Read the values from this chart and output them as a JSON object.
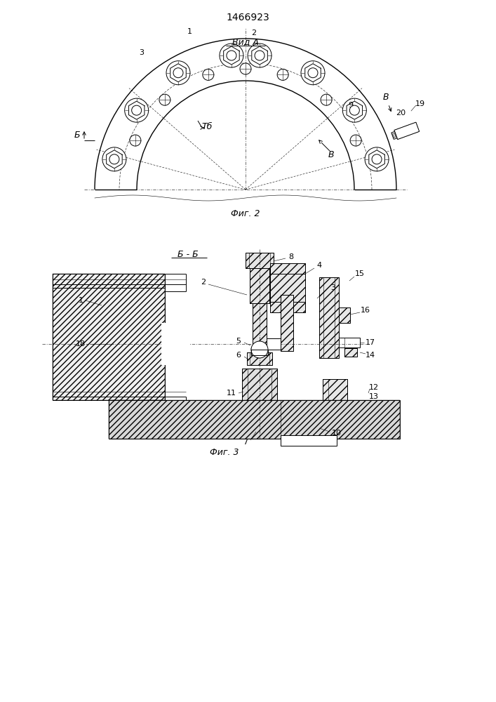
{
  "title": "1466923",
  "fig2_label": "Фиг. 2",
  "fig3_label": "Фиг. 3",
  "vid_a_label": "Вид А",
  "bb_label": "Б - Б",
  "bg_color": "#ffffff",
  "line_color": "#000000",
  "lw": 0.7,
  "lw_thin": 0.4,
  "lw_thick": 1.0
}
